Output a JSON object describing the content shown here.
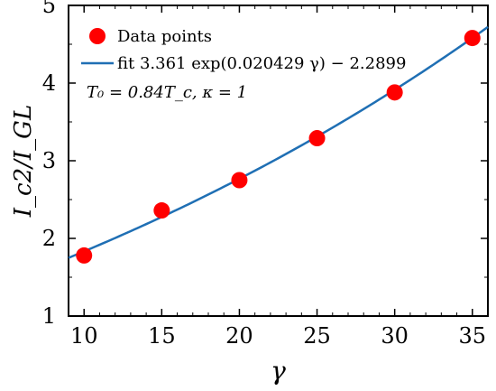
{
  "chart_data": {
    "type": "scatter",
    "xlabel": "γ",
    "ylabel": "I_c2/I_GL",
    "xlim": [
      9,
      36
    ],
    "ylim": [
      1,
      5
    ],
    "x_ticks": [
      10,
      15,
      20,
      25,
      30,
      35
    ],
    "y_ticks": [
      1,
      2,
      3,
      4,
      5
    ],
    "grid": false,
    "legend_position": "top-left",
    "series": [
      {
        "name": "Data points",
        "kind": "scatter",
        "color": "#ff0000",
        "x": [
          10,
          15,
          20,
          25,
          30,
          35
        ],
        "y": [
          1.78,
          2.36,
          2.75,
          3.29,
          3.88,
          4.58
        ]
      },
      {
        "name": "fit 3.361 exp(0.020429 γ) − 2.2899",
        "kind": "line",
        "color": "#1f6fb4",
        "function": {
          "a": 3.361,
          "b": 0.020429,
          "c": -2.2899
        }
      }
    ],
    "annotation": "T₀ = 0.84T_c,  κ = 1"
  }
}
